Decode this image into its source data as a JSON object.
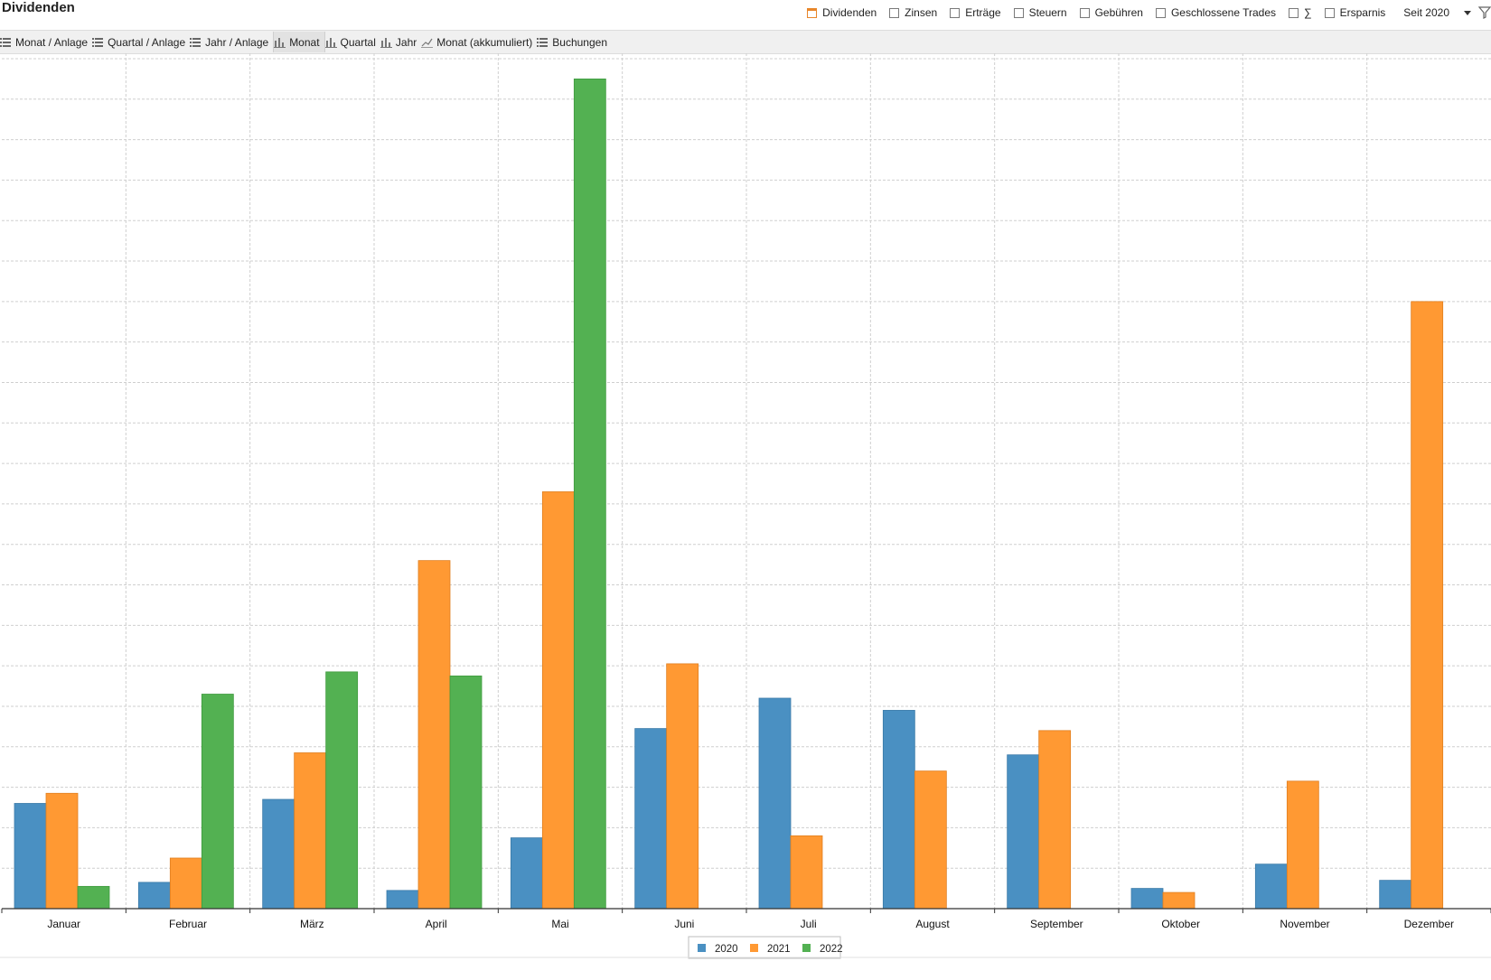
{
  "header": {
    "title": "Dividenden",
    "filters": [
      {
        "label": "Dividenden",
        "checked": true
      },
      {
        "label": "Zinsen",
        "checked": false
      },
      {
        "label": "Erträge",
        "checked": false
      },
      {
        "label": "Steuern",
        "checked": false
      },
      {
        "label": "Gebühren",
        "checked": false
      },
      {
        "label": "Geschlossene Trades",
        "checked": false
      },
      {
        "label": "∑",
        "checked": false
      },
      {
        "label": "Ersparnis",
        "checked": false
      }
    ],
    "period_label": "Seit 2020",
    "filter_icon": "funnel-icon"
  },
  "toolbar": {
    "items": [
      {
        "label": "Monat / Anlage",
        "icon": "list-icon"
      },
      {
        "label": "Quartal / Anlage",
        "icon": "list-icon"
      },
      {
        "label": "Jahr / Anlage",
        "icon": "list-icon"
      },
      {
        "label": "Monat",
        "icon": "bar-chart-icon",
        "active": true
      },
      {
        "label": "Quartal",
        "icon": "bar-chart-icon"
      },
      {
        "label": "Jahr",
        "icon": "bar-chart-icon"
      },
      {
        "label": "Monat (akkumuliert)",
        "icon": "line-chart-icon"
      },
      {
        "label": "Buchungen",
        "icon": "list-icon"
      }
    ]
  },
  "colors": {
    "s2020": "#4a90c2",
    "s2021": "#ff9933",
    "s2022": "#53b152",
    "grid": "#cfcfcf",
    "accent": "#e8862a"
  },
  "chart_data": {
    "type": "bar",
    "categories": [
      "Januar",
      "Februar",
      "März",
      "April",
      "Mai",
      "Juni",
      "Juli",
      "August",
      "September",
      "Oktober",
      "November",
      "Dezember"
    ],
    "series": [
      {
        "name": "2020",
        "values": [
          26,
          6.5,
          27,
          4.5,
          17.5,
          44.5,
          52,
          49,
          38,
          5,
          11,
          7
        ]
      },
      {
        "name": "2021",
        "values": [
          28.5,
          12.5,
          38.5,
          86,
          103,
          60.5,
          18,
          34,
          44,
          4,
          31.5,
          150
        ]
      },
      {
        "name": "2022",
        "values": [
          5.5,
          53,
          58.5,
          57.5,
          205,
          null,
          null,
          null,
          null,
          null,
          null,
          null
        ]
      }
    ],
    "ylim": [
      0,
      210
    ],
    "y_grid_step": 10,
    "y_tick_labels_shown": false,
    "grid": true,
    "legend": "bottom-center"
  }
}
